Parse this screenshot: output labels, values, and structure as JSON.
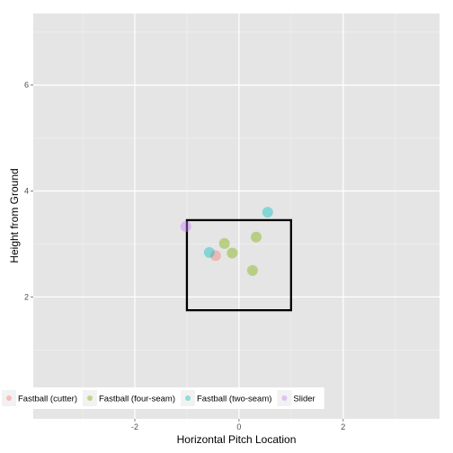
{
  "chart_data": {
    "type": "scatter",
    "title": "",
    "xlabel": "Horizontal Pitch Location",
    "ylabel": "Height from Ground",
    "xlim": [
      -3.95,
      3.85
    ],
    "ylim": [
      -0.3,
      7.35
    ],
    "x_ticks": [
      -2,
      0,
      2
    ],
    "y_ticks": [
      2,
      4,
      6
    ],
    "x_tick_labels": [
      "-2",
      "0",
      "2"
    ],
    "y_tick_labels": [
      "2",
      "4",
      "6"
    ],
    "grid": true,
    "legend_position": "bottom",
    "strike_zone": {
      "x0": -1,
      "x1": 1,
      "y0": 1.75,
      "y1": 3.45
    },
    "series": [
      {
        "name": "Fastball (cutter)",
        "color": "#F8766D",
        "points": [
          [
            -0.45,
            2.78
          ]
        ]
      },
      {
        "name": "Fastball (four-seam)",
        "color": "#7CAE00",
        "points": [
          [
            -0.28,
            3.01
          ],
          [
            -0.13,
            2.83
          ],
          [
            0.33,
            3.13
          ],
          [
            0.26,
            2.5
          ]
        ]
      },
      {
        "name": "Fastball (two-seam)",
        "color": "#00BFC4",
        "points": [
          [
            -0.57,
            2.84
          ],
          [
            0.55,
            3.6
          ]
        ]
      },
      {
        "name": "Slider",
        "color": "#C77CFF",
        "points": [
          [
            -1.02,
            3.33
          ]
        ]
      }
    ]
  }
}
